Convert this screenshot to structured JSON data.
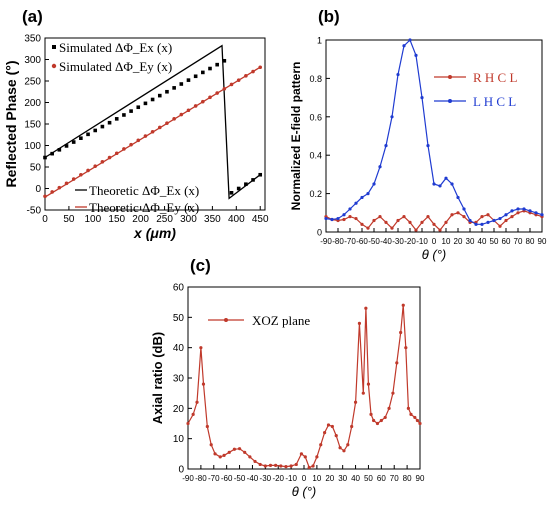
{
  "chart_data": [
    {
      "panel": "(a)",
      "type": "line",
      "xlabel": "x (μm)",
      "ylabel": "Reflected Phase (°)",
      "xlim": [
        0,
        460
      ],
      "ylim": [
        -50,
        350
      ],
      "xticks": [
        0,
        50,
        100,
        150,
        200,
        250,
        300,
        350,
        400,
        450
      ],
      "yticks": [
        -50,
        0,
        50,
        100,
        150,
        200,
        250,
        300,
        350
      ],
      "legend_top": [
        "Simulated ΔΦ_Ex (x)",
        "Simulated ΔΦ_Ey (x)"
      ],
      "legend_bottom": [
        "Theoretic ΔΦ_Ex (x)",
        "Theoretic ΔΦ_Ey (x)"
      ],
      "series": [
        {
          "name": "Simulated ΔΦ_Ex (x)",
          "color": "#000000",
          "marker": "square",
          "x": [
            0,
            15,
            30,
            45,
            60,
            75,
            90,
            105,
            120,
            135,
            150,
            165,
            180,
            195,
            210,
            225,
            240,
            255,
            270,
            285,
            300,
            315,
            330,
            345,
            360,
            375,
            390,
            405,
            420,
            435,
            450
          ],
          "y": [
            72,
            81,
            90,
            99,
            108,
            117,
            126,
            135,
            144,
            153,
            162,
            171,
            180,
            189,
            198,
            207,
            216,
            225,
            234,
            243,
            252,
            261,
            270,
            279,
            288,
            297,
            -10,
            0,
            10,
            20,
            32
          ]
        },
        {
          "name": "Simulated ΔΦ_Ey (x)",
          "color": "#c0392b",
          "marker": "circle",
          "x": [
            0,
            15,
            30,
            45,
            60,
            75,
            90,
            105,
            120,
            135,
            150,
            165,
            180,
            195,
            210,
            225,
            240,
            255,
            270,
            285,
            300,
            315,
            330,
            345,
            360,
            375,
            390,
            405,
            420,
            435,
            450
          ],
          "y": [
            -18,
            -8,
            2,
            12,
            22,
            32,
            42,
            52,
            62,
            72,
            82,
            92,
            102,
            112,
            122,
            132,
            142,
            152,
            162,
            172,
            182,
            192,
            202,
            212,
            222,
            232,
            242,
            252,
            262,
            272,
            282
          ]
        },
        {
          "name": "Theoretic ΔΦ_Ex (x)",
          "color": "#000000",
          "marker": "none",
          "x": [
            0,
            370,
            385,
            450
          ],
          "y": [
            72,
            332,
            -23,
            32
          ]
        },
        {
          "name": "Theoretic ΔΦ_Ey (x)",
          "color": "#c0392b",
          "marker": "none",
          "x": [
            0,
            450
          ],
          "y": [
            -20,
            282
          ]
        }
      ]
    },
    {
      "panel": "(b)",
      "type": "line",
      "xlabel": "θ (°)",
      "ylabel": "Normalized E-field pattern",
      "xlim": [
        -90,
        90
      ],
      "ylim": [
        0,
        1.0
      ],
      "xticks": [
        -90,
        -80,
        -70,
        -60,
        -50,
        -40,
        -30,
        -20,
        -10,
        0,
        10,
        20,
        30,
        40,
        50,
        60,
        70,
        80,
        90
      ],
      "yticks": [
        0,
        0.2,
        0.4,
        0.6,
        0.8,
        1.0
      ],
      "x": [
        -90,
        -85,
        -80,
        -75,
        -70,
        -65,
        -60,
        -55,
        -50,
        -45,
        -40,
        -35,
        -30,
        -25,
        -20,
        -15,
        -10,
        -5,
        0,
        5,
        10,
        15,
        20,
        25,
        30,
        35,
        40,
        45,
        50,
        55,
        60,
        65,
        70,
        75,
        80,
        85,
        90
      ],
      "series": [
        {
          "name": "RHCL",
          "color": "#c0392b",
          "y": [
            0.08,
            0.065,
            0.06,
            0.065,
            0.08,
            0.07,
            0.04,
            0.02,
            0.06,
            0.08,
            0.05,
            0.02,
            0.06,
            0.08,
            0.05,
            0.01,
            0.05,
            0.08,
            0.04,
            0.01,
            0.05,
            0.09,
            0.1,
            0.08,
            0.05,
            0.05,
            0.08,
            0.09,
            0.06,
            0.03,
            0.06,
            0.08,
            0.1,
            0.11,
            0.1,
            0.09,
            0.08
          ]
        },
        {
          "name": "LHCL",
          "color": "#1f3bd1",
          "y": [
            0.07,
            0.065,
            0.07,
            0.09,
            0.12,
            0.15,
            0.18,
            0.2,
            0.25,
            0.34,
            0.45,
            0.6,
            0.82,
            0.97,
            1.0,
            0.92,
            0.7,
            0.45,
            0.25,
            0.24,
            0.28,
            0.25,
            0.18,
            0.12,
            0.06,
            0.04,
            0.04,
            0.05,
            0.06,
            0.07,
            0.09,
            0.11,
            0.12,
            0.12,
            0.11,
            0.1,
            0.09
          ]
        }
      ],
      "legend_labels": [
        "R H C L",
        "L H C L"
      ]
    },
    {
      "panel": "(c)",
      "type": "line",
      "xlabel": "θ (°)",
      "ylabel": "Axial ratio (dB)",
      "xlim": [
        -90,
        90
      ],
      "ylim": [
        0,
        60
      ],
      "xticks": [
        -90,
        -80,
        -70,
        -60,
        -50,
        -40,
        -30,
        -20,
        -10,
        0,
        10,
        20,
        30,
        40,
        50,
        60,
        70,
        80,
        90
      ],
      "yticks": [
        0,
        10,
        20,
        30,
        40,
        50,
        60
      ],
      "x": [
        -90,
        -86,
        -83,
        -80,
        -78,
        -75,
        -72,
        -69,
        -65,
        -62,
        -58,
        -54,
        -50,
        -46,
        -42,
        -38,
        -34,
        -30,
        -26,
        -22,
        -18,
        -14,
        -10,
        -6,
        -2,
        1,
        4,
        7,
        10,
        13,
        16,
        19,
        22,
        25,
        28,
        31,
        34,
        37,
        40,
        43,
        46,
        48,
        50,
        52,
        54,
        57,
        60,
        63,
        66,
        69,
        72,
        75,
        77,
        79,
        81,
        83,
        86,
        88,
        90
      ],
      "series": [
        {
          "name": "XOZ plane",
          "color": "#c0392b",
          "y": [
            15,
            18,
            22,
            40,
            28,
            14,
            8,
            5,
            4,
            4.5,
            5.5,
            6.5,
            6.7,
            5.5,
            4,
            2.5,
            1.5,
            1,
            1.2,
            1.2,
            1,
            0.8,
            1,
            1.5,
            5,
            4,
            0.5,
            1,
            4,
            8,
            12,
            14.5,
            14,
            11,
            7,
            6,
            8,
            14,
            22,
            48,
            25,
            53,
            28,
            18,
            16,
            15,
            16,
            17,
            20,
            25,
            35,
            45,
            54,
            40,
            20,
            18,
            17,
            16,
            15
          ]
        }
      ],
      "legend_labels": [
        "XOZ plane"
      ]
    }
  ],
  "labels": {
    "panel_a": "(a)",
    "panel_b": "(b)",
    "panel_c": "(c)"
  }
}
